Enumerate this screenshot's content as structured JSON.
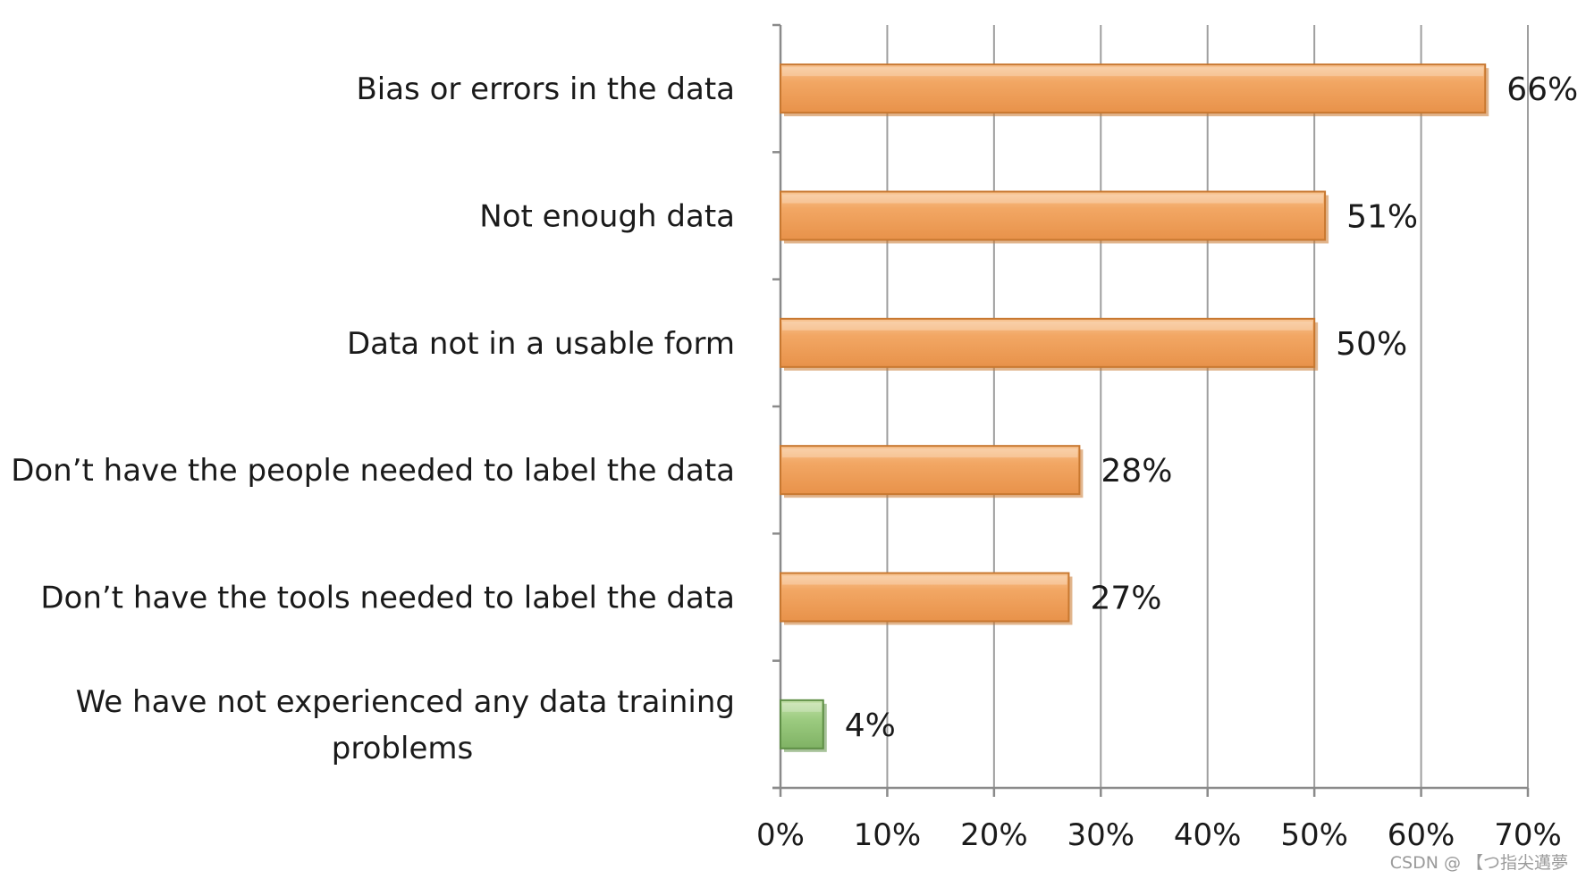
{
  "chart_data": {
    "type": "bar",
    "orientation": "horizontal",
    "categories": [
      "Bias or errors in the data",
      "Not enough data",
      "Data not in a usable form",
      "Don’t have the people needed to label the data",
      "Don’t have the tools needed to label the data",
      "We have not experienced any data training problems"
    ],
    "category_lines": [
      [
        "Bias or errors in the data"
      ],
      [
        "Not enough data"
      ],
      [
        "Data not in a usable form"
      ],
      [
        "Don’t have the people needed to label the data"
      ],
      [
        "Don’t have the tools needed to label the data"
      ],
      [
        "We have not experienced any data training",
        "problems"
      ]
    ],
    "values": [
      66,
      51,
      50,
      28,
      27,
      4
    ],
    "value_labels": [
      "66%",
      "51%",
      "50%",
      "28%",
      "27%",
      "4%"
    ],
    "xlim": [
      0,
      70
    ],
    "x_ticks": [
      0,
      10,
      20,
      30,
      40,
      50,
      60,
      70
    ],
    "x_tick_labels": [
      "0%",
      "10%",
      "20%",
      "30%",
      "40%",
      "50%",
      "60%",
      "70%"
    ],
    "grid": true,
    "legend": "none",
    "colors": {
      "bar_primary": "#f0a05a",
      "bar_primary_edge": "#c87830",
      "bar_highlight": "#f7c28f",
      "bar_secondary": "#93c47d",
      "bar_secondary_edge": "#5f8f46",
      "gridline": "#9e9e9e",
      "axis": "#8a8a8a"
    }
  },
  "watermark": "CSDN @ 【つ指尖邁夢"
}
